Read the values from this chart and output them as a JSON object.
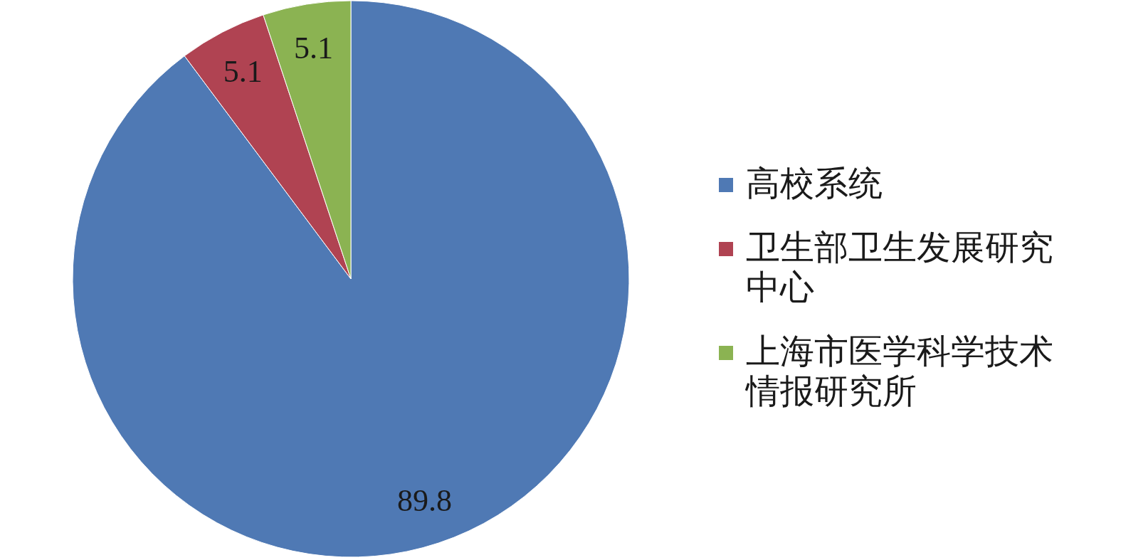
{
  "chart_data": {
    "type": "pie",
    "categories": [
      "高校系统",
      "卫生部卫生发展研究中心",
      "上海市医学科学技术情报研究所"
    ],
    "values": [
      89.8,
      5.1,
      5.1
    ],
    "colors": [
      "#4f79b4",
      "#b04352",
      "#8bb352"
    ],
    "data_labels": true,
    "legend": "right"
  }
}
